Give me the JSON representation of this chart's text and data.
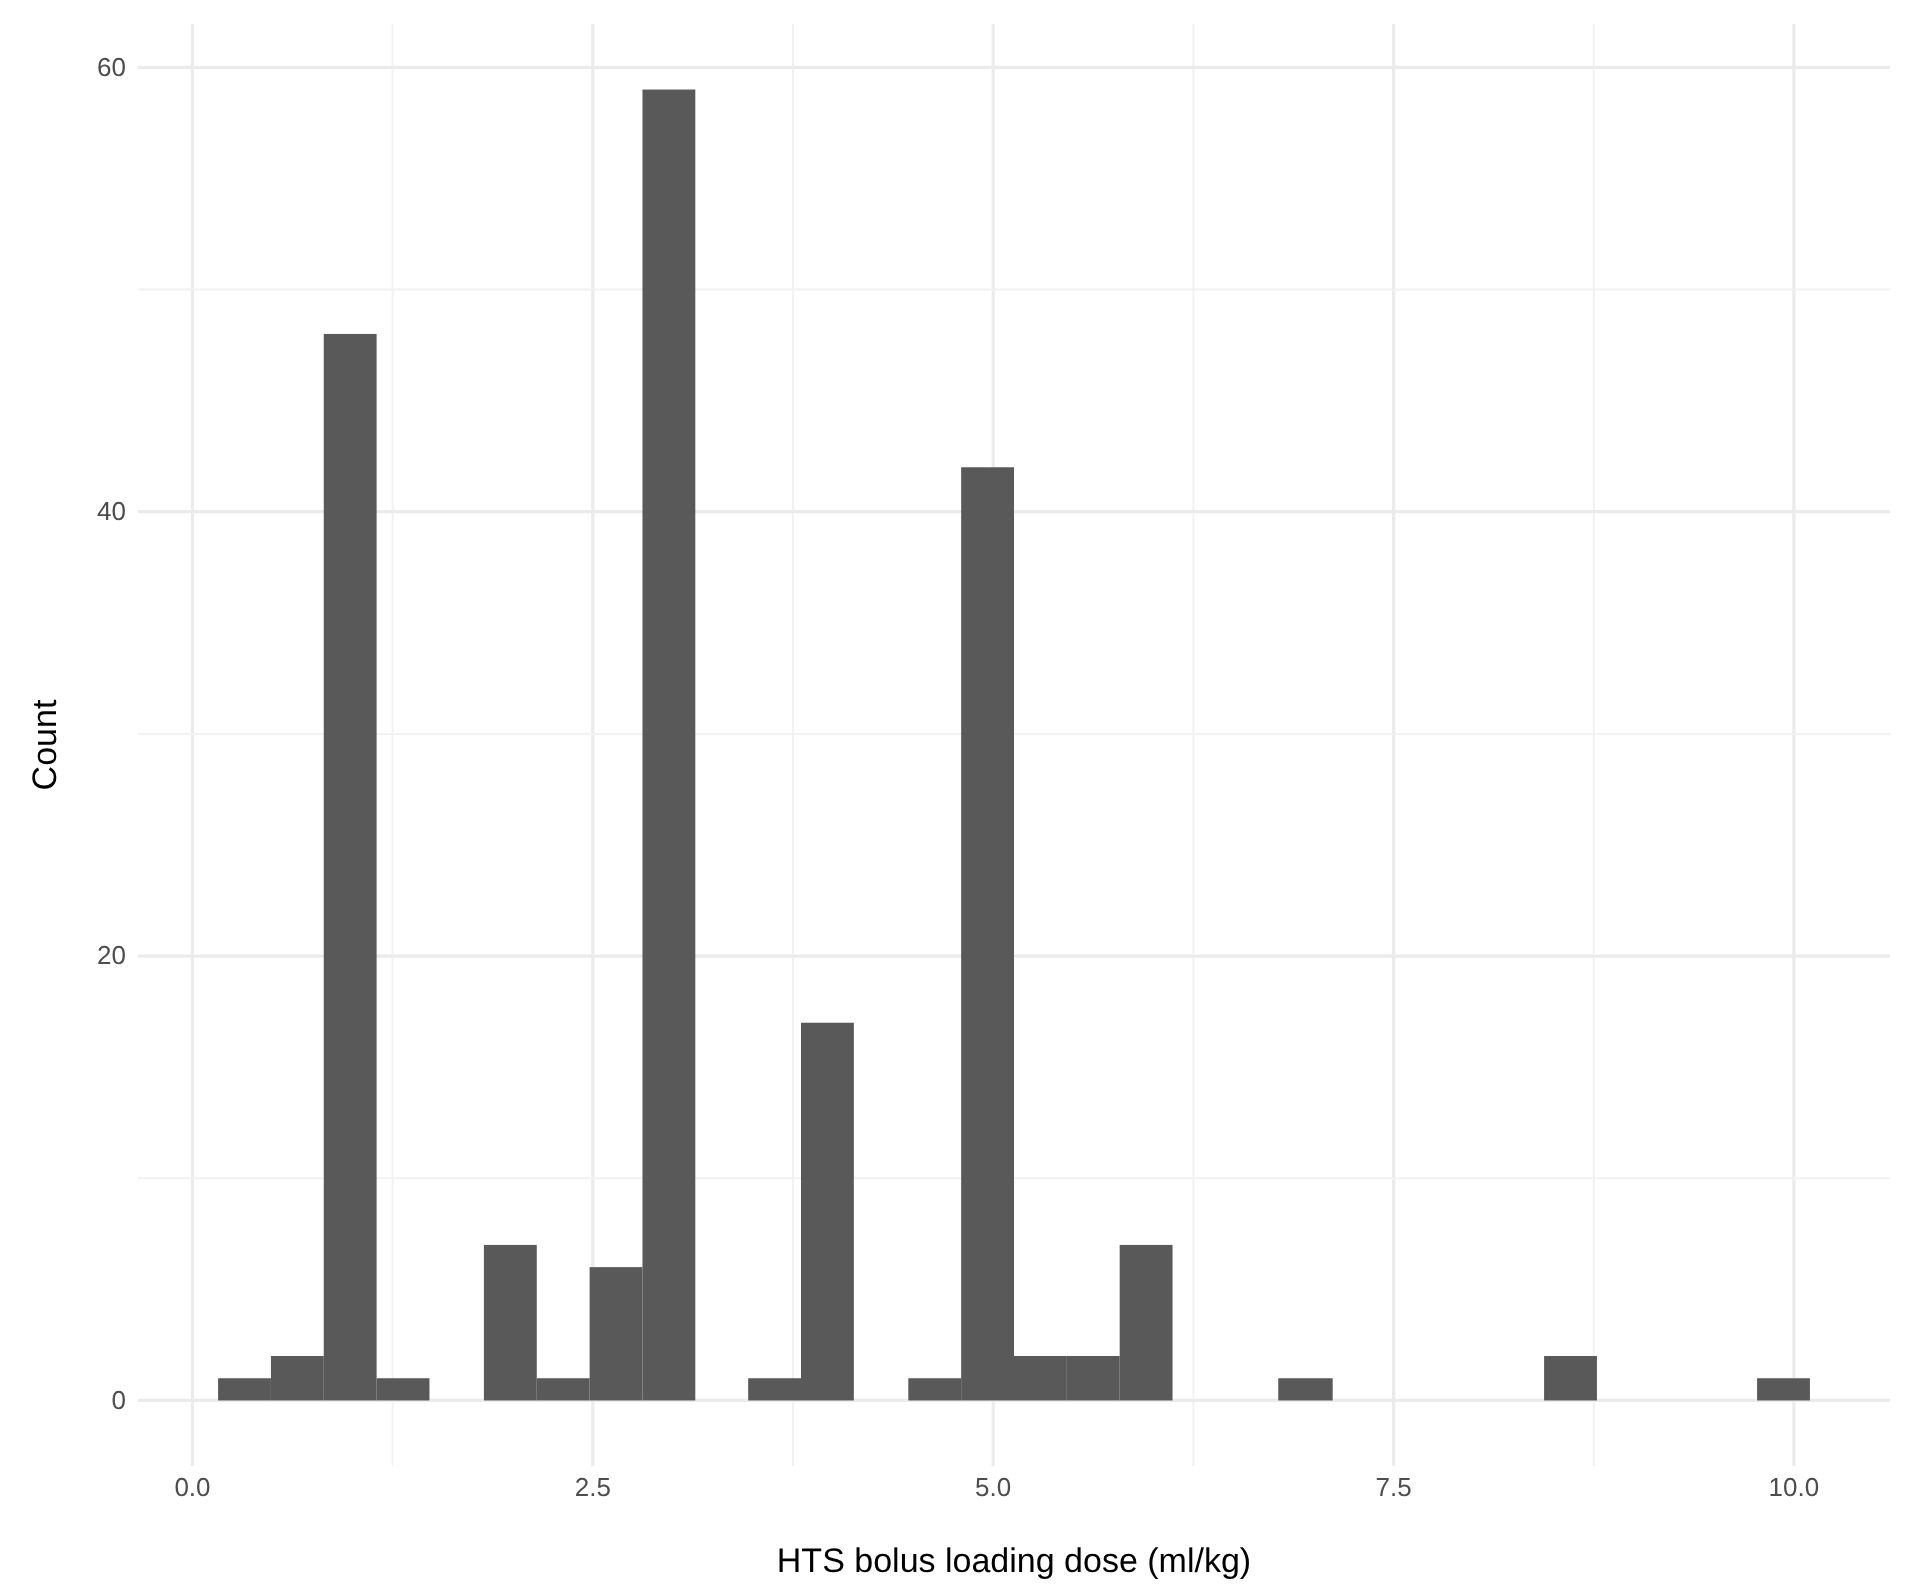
{
  "chart_data": {
    "type": "histogram",
    "xlabel": "HTS bolus loading dose (ml/kg)",
    "ylabel": "Count",
    "bins": [
      0.16,
      0.49,
      0.82,
      1.15,
      1.48,
      1.82,
      2.15,
      2.48,
      2.81,
      3.14,
      3.47,
      3.8,
      4.13,
      4.47,
      4.8,
      5.13,
      5.46,
      5.79,
      6.12,
      6.78,
      7.12,
      8.44,
      8.77,
      9.77,
      10.1
    ],
    "values": [
      1,
      2,
      48,
      1,
      0,
      7,
      1,
      6,
      59,
      0,
      1,
      17,
      0,
      1,
      42,
      2,
      2,
      7,
      0,
      1,
      0,
      2,
      0,
      1
    ],
    "color": "#595959",
    "xlim": [
      -0.34,
      10.6
    ],
    "ylim": [
      -2.95,
      61.95
    ],
    "xticks": [
      {
        "value": 0,
        "label": "0.0"
      },
      {
        "value": 2.5,
        "label": "2.5"
      },
      {
        "value": 5,
        "label": "5.0"
      },
      {
        "value": 7.5,
        "label": "7.5"
      },
      {
        "value": 10,
        "label": "10.0"
      }
    ],
    "yticks": [
      0,
      20,
      40,
      60
    ],
    "grid": true
  }
}
